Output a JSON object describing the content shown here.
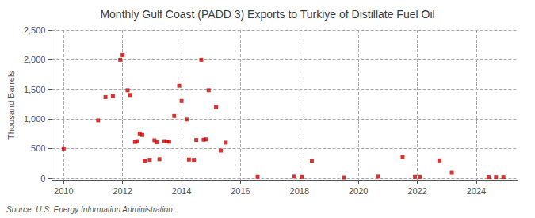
{
  "chart_data": {
    "type": "scatter",
    "title": "Monthly Gulf Coast (PADD 3) Exports to Turkiye of Distillate Fuel Oil",
    "ylabel": "Thousand Barrels",
    "source": "Source: U.S. Energy Information Administration",
    "color": "#cc0000",
    "marker": "square",
    "grid": true,
    "xlim": [
      2009.6,
      2025.4
    ],
    "xticks": [
      2010,
      2012,
      2014,
      2016,
      2018,
      2020,
      2022,
      2024
    ],
    "ylim": [
      -30,
      2500
    ],
    "yticks": [
      0,
      500,
      {
        "value": 1000,
        "label": "1,000"
      },
      {
        "value": 1500,
        "label": "1,500"
      },
      {
        "value": 2000,
        "label": "2,000"
      },
      {
        "value": 2500,
        "label": "2,500"
      }
    ],
    "x": [
      2010.0,
      2011.17,
      2011.42,
      2011.67,
      2011.92,
      2012.0,
      2012.17,
      2012.25,
      2012.42,
      2012.5,
      2012.58,
      2012.67,
      2012.75,
      2012.92,
      2013.08,
      2013.17,
      2013.25,
      2013.42,
      2013.5,
      2013.58,
      2013.75,
      2013.92,
      2014.0,
      2014.17,
      2014.25,
      2014.42,
      2014.5,
      2014.67,
      2014.75,
      2014.83,
      2014.92,
      2015.17,
      2015.33,
      2015.5,
      2016.58,
      2017.83,
      2018.08,
      2018.42,
      2019.5,
      2020.67,
      2021.5,
      2021.92,
      2022.08,
      2022.75,
      2023.17,
      2024.42,
      2024.67,
      2024.92
    ],
    "values": [
      500,
      975,
      1370,
      1385,
      2000,
      2080,
      1485,
      1405,
      610,
      625,
      755,
      730,
      295,
      310,
      640,
      605,
      320,
      625,
      620,
      615,
      1050,
      1560,
      1305,
      990,
      315,
      310,
      645,
      2000,
      650,
      655,
      1485,
      1200,
      465,
      600,
      20,
      25,
      20,
      295,
      10,
      25,
      360,
      20,
      20,
      300,
      90,
      15,
      15,
      15
    ]
  }
}
